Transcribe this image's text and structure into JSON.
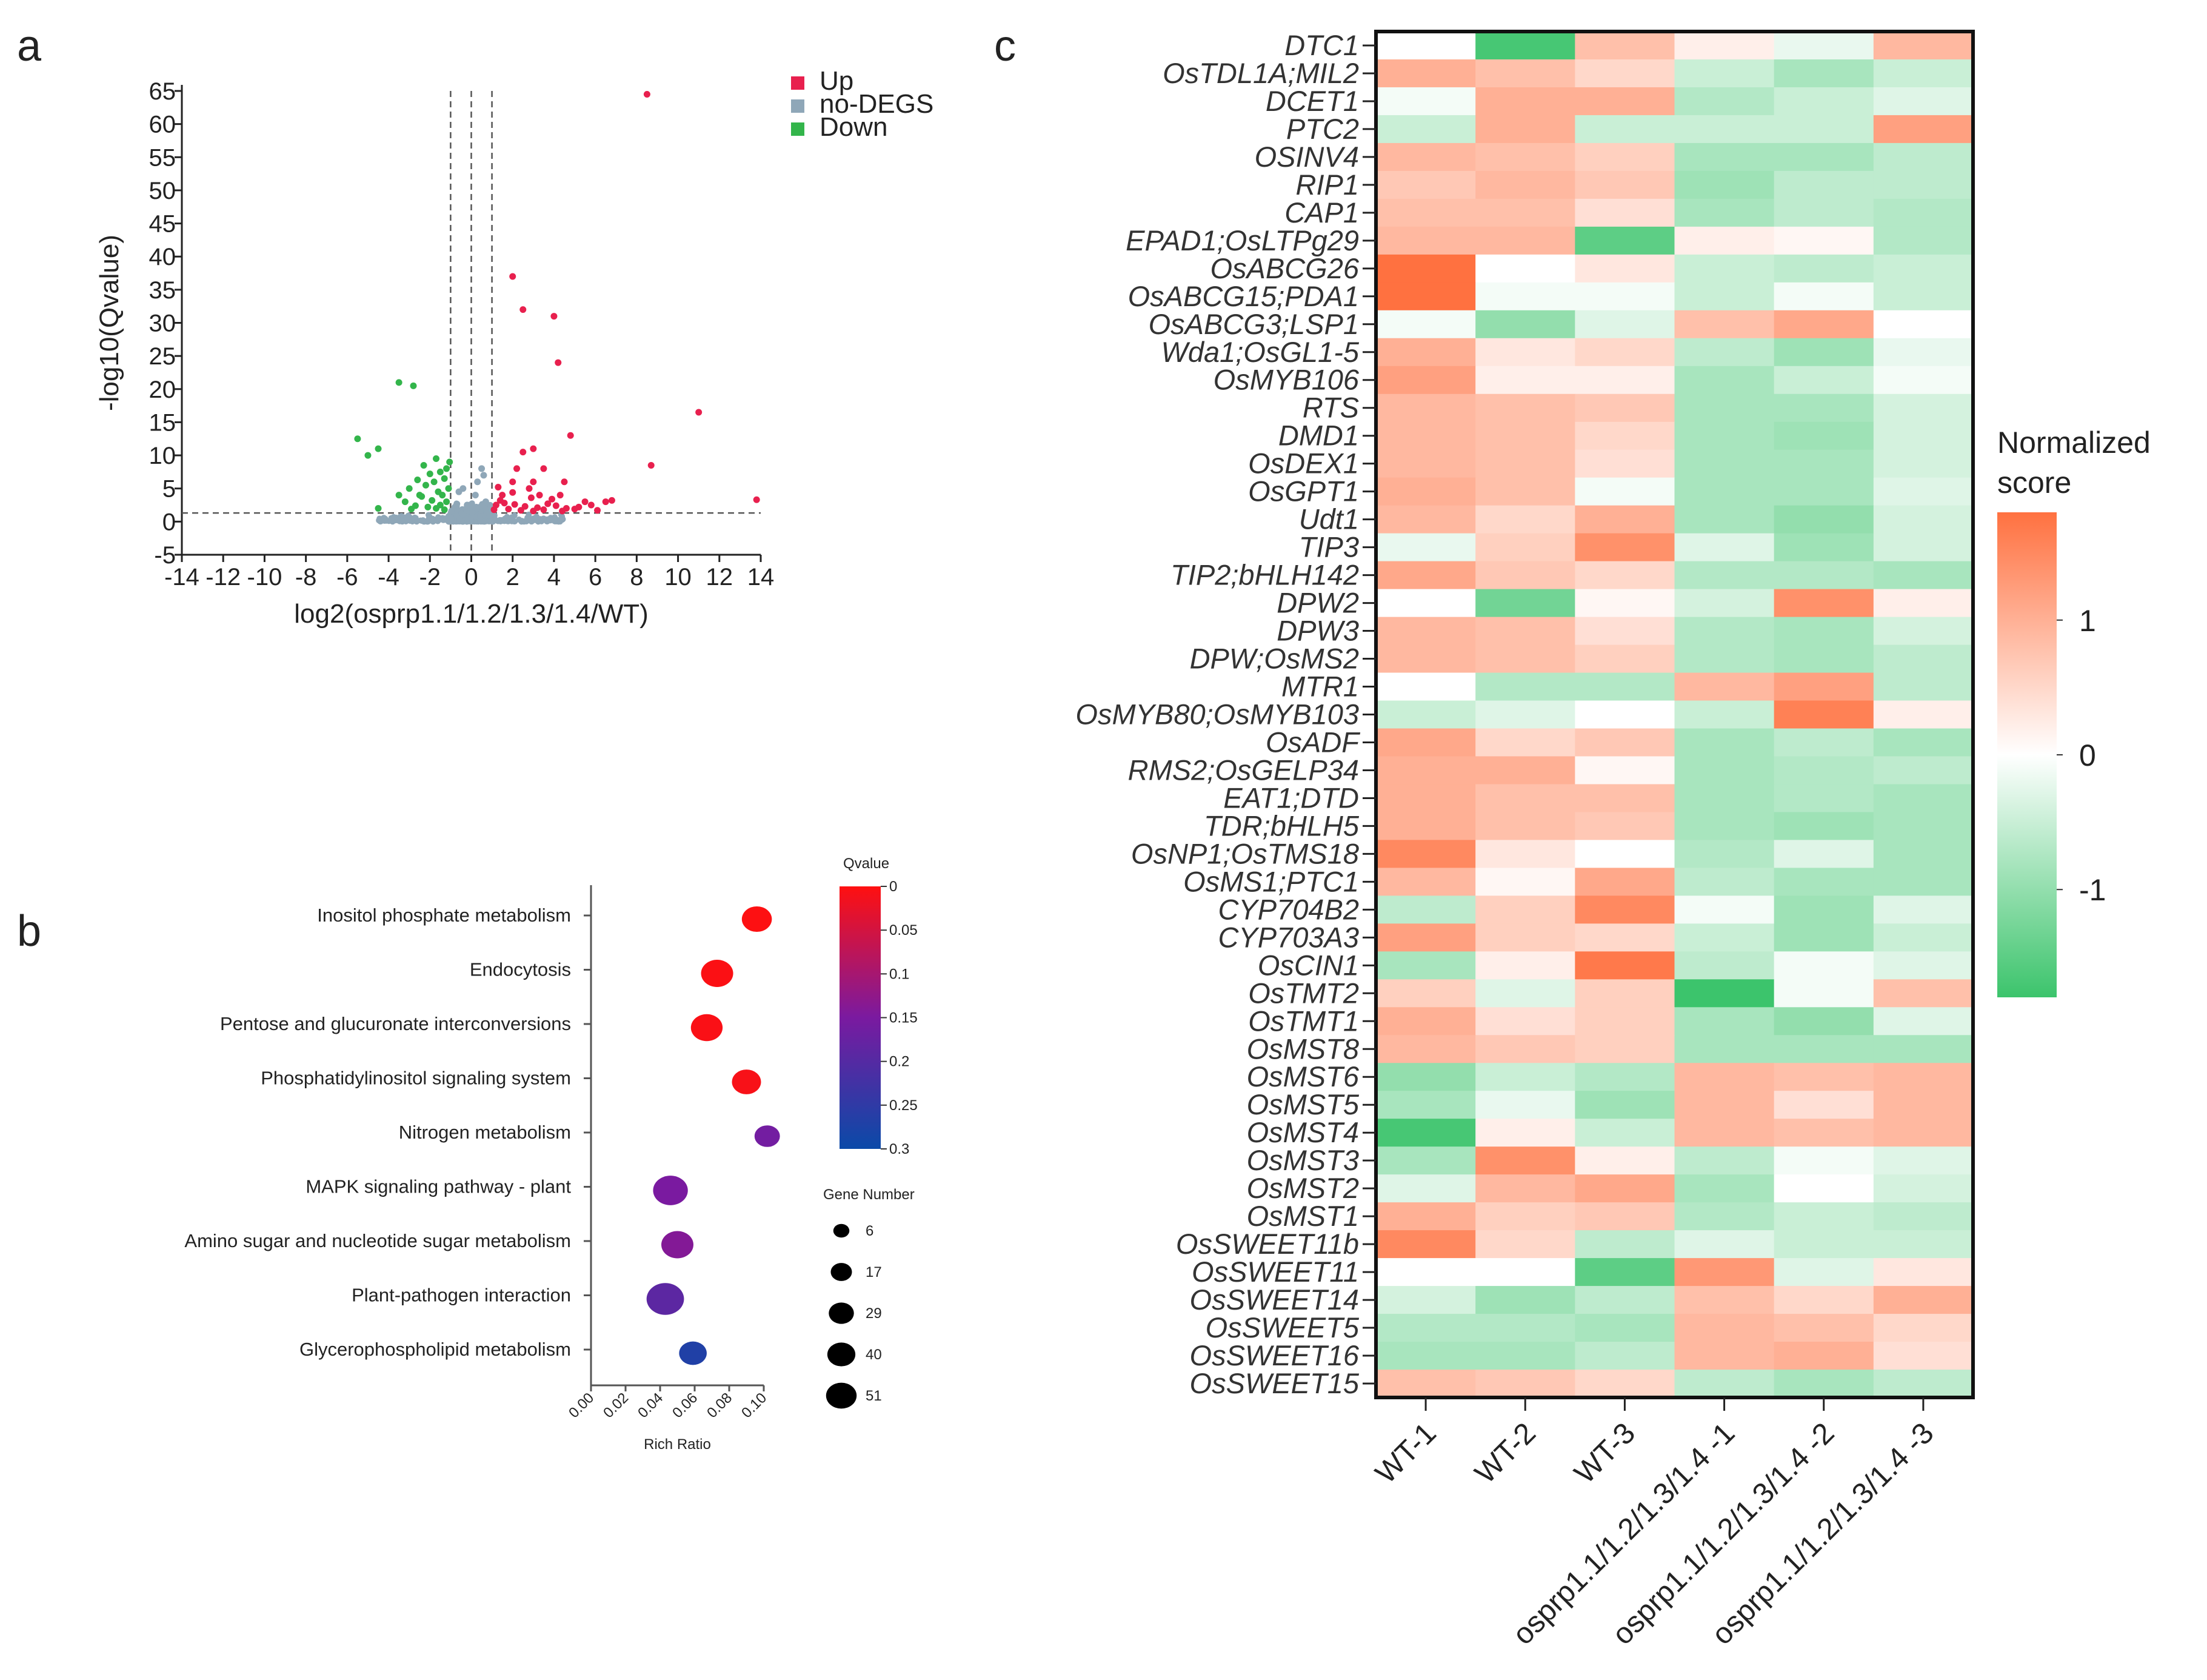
{
  "panels": {
    "a": "a",
    "b": "b",
    "c": "c"
  },
  "colors": {
    "up": "#e8204e",
    "nodeg": "#8fa7b8",
    "down": "#33b54b",
    "heat_low": "#3cc46c",
    "heat_mid": "#ffffff",
    "heat_high": "#ff7140"
  },
  "chart_data": [
    {
      "type": "scatter",
      "panel": "a",
      "xlabel": "log2(osprp1.1/1.2/1.3/1.4/WT)",
      "ylabel": "-log10(Qvalue)",
      "xlim": [
        -14,
        14
      ],
      "ylim": [
        -5,
        65
      ],
      "xticks": [
        -14,
        -12,
        -10,
        -8,
        -6,
        -4,
        -2,
        0,
        2,
        4,
        6,
        8,
        10,
        12,
        14
      ],
      "yticks": [
        -5,
        0,
        5,
        10,
        15,
        20,
        25,
        30,
        35,
        40,
        45,
        50,
        55,
        60,
        65
      ],
      "threshold_lines": {
        "x": [
          -1,
          0,
          1
        ],
        "y": [
          1.3
        ]
      },
      "legend": [
        "Up",
        "no-DEGS",
        "Down"
      ],
      "series": [
        {
          "name": "Up",
          "points": [
            [
              8.5,
              64.5
            ],
            [
              2,
              37
            ],
            [
              2.5,
              32
            ],
            [
              4,
              31
            ],
            [
              4.2,
              24
            ],
            [
              11,
              16.5
            ],
            [
              4.8,
              13
            ],
            [
              8.7,
              8.5
            ],
            [
              2.5,
              10.5
            ],
            [
              3,
              11
            ],
            [
              2.2,
              8
            ],
            [
              3.5,
              8
            ],
            [
              2,
              6
            ],
            [
              3,
              6
            ],
            [
              4.5,
              6
            ],
            [
              2.8,
              5
            ],
            [
              1.5,
              4
            ],
            [
              4.3,
              4
            ],
            [
              5.5,
              3
            ],
            [
              6.5,
              3
            ],
            [
              6.8,
              3.2
            ],
            [
              13.8,
              3.3
            ],
            [
              1.2,
              2.5
            ],
            [
              1.6,
              2.8
            ],
            [
              2.1,
              2.6
            ],
            [
              2.6,
              2.3
            ],
            [
              3.2,
              2.1
            ],
            [
              3.7,
              2.7
            ],
            [
              4.1,
              2.4
            ],
            [
              4.6,
              2.0
            ],
            [
              5.2,
              2.2
            ],
            [
              5.8,
              2.5
            ],
            [
              1.1,
              1.8
            ],
            [
              1.8,
              1.9
            ],
            [
              2.4,
              1.7
            ],
            [
              3.0,
              1.6
            ],
            [
              3.5,
              1.8
            ],
            [
              4.4,
              1.6
            ],
            [
              5.0,
              1.9
            ],
            [
              6.1,
              1.7
            ],
            [
              1.4,
              3.2
            ],
            [
              2.9,
              3.6
            ],
            [
              3.9,
              3.4
            ],
            [
              1.3,
              5.2
            ],
            [
              2.0,
              4.4
            ],
            [
              3.3,
              4.0
            ]
          ]
        },
        {
          "name": "Down",
          "points": [
            [
              -3.5,
              21
            ],
            [
              -2.8,
              20.5
            ],
            [
              -5.5,
              12.5
            ],
            [
              -4.5,
              11
            ],
            [
              -5,
              10
            ],
            [
              -3,
              5
            ],
            [
              -3.5,
              4
            ],
            [
              -2.5,
              4
            ],
            [
              -4.5,
              2
            ],
            [
              -1.2,
              8
            ],
            [
              -1.5,
              7.5
            ],
            [
              -2.0,
              7.2
            ],
            [
              -1.3,
              6.5
            ],
            [
              -1.8,
              6
            ],
            [
              -2.2,
              5.5
            ],
            [
              -1.1,
              5
            ],
            [
              -1.6,
              4.5
            ],
            [
              -2.4,
              3.8
            ],
            [
              -1.9,
              3.2
            ],
            [
              -1.2,
              3
            ],
            [
              -1.5,
              2.5
            ],
            [
              -2.1,
              2.2
            ],
            [
              -1.7,
              2
            ],
            [
              -1.3,
              1.8
            ],
            [
              -2.7,
              2.4
            ],
            [
              -2.9,
              1.9
            ],
            [
              -1.4,
              4
            ],
            [
              -2.6,
              6.3
            ],
            [
              -1.05,
              9
            ],
            [
              -1.7,
              9.5
            ],
            [
              -2.3,
              8.5
            ],
            [
              -3.2,
              3
            ]
          ]
        },
        {
          "name": "no-DEGS",
          "points": [
            [
              0.5,
              8
            ],
            [
              0.6,
              7
            ],
            [
              0.3,
              6
            ],
            [
              -0.4,
              5
            ],
            [
              0.2,
              4
            ],
            [
              -0.6,
              4.5
            ],
            [
              0.7,
              3
            ],
            [
              -0.2,
              2.5
            ]
          ]
        }
      ]
    },
    {
      "type": "scatter",
      "panel": "b",
      "xlabel": "Rich Ratio",
      "xlim": [
        0.0,
        0.1
      ],
      "xticks": [
        "0.00",
        "0.02",
        "0.04",
        "0.06",
        "0.08",
        "0.10"
      ],
      "categories": [
        "Inositol phosphate metabolism",
        "Endocytosis",
        "Pentose and glucuronate interconversions",
        "Phosphatidylinositol signaling system",
        "Nitrogen metabolism",
        "MAPK signaling pathway - plant",
        "Amino sugar and nucleotide sugar metabolism",
        "Plant-pathogen interaction",
        "Glycerophospholipid metabolism"
      ],
      "rich_ratio": [
        0.096,
        0.073,
        0.067,
        0.09,
        0.102,
        0.046,
        0.05,
        0.043,
        0.059
      ],
      "gene_number": [
        20,
        25,
        24,
        18,
        11,
        32,
        25,
        40,
        15
      ],
      "qvalue": [
        0.002,
        0.004,
        0.006,
        0.008,
        0.16,
        0.15,
        0.14,
        0.19,
        0.27
      ],
      "color_legend_title": "Qvalue",
      "color_ticks": [
        "0",
        "0.05",
        "0.1",
        "0.15",
        "0.2",
        "0.25",
        "0.3"
      ],
      "size_legend_title": "Gene Number",
      "size_ticks": [
        6,
        17,
        29,
        40,
        51
      ]
    },
    {
      "type": "heatmap",
      "panel": "c",
      "columns": [
        "WT-1",
        "WT-2",
        "WT-3",
        "osprp1.1/1.2/1.3/1.4 -1",
        "osprp1.1/1.2/1.3/1.4 -2",
        "osprp1.1/1.2/1.3/1.4 -3"
      ],
      "rows": [
        "DTC1",
        "OsTDL1A;MIL2",
        "DCET1",
        "PTC2",
        "OSINV4",
        "RIP1",
        "CAP1",
        "EPAD1;OsLTPg29",
        "OsABCG26",
        "OsABCG15;PDA1",
        "OsABCG3;LSP1",
        "Wda1;OsGL1-5",
        "OsMYB106",
        "RTS",
        "DMD1",
        "OsDEX1",
        "OsGPT1",
        "Udt1",
        "TIP3",
        "TIP2;bHLH142",
        "DPW2",
        "DPW3",
        "DPW;OsMS2",
        "MTR1",
        "OsMYB80;OsMYB103",
        "OsADF",
        "RMS2;OsGELP34",
        "EAT1;DTD",
        "TDR;bHLH5",
        "OsNP1;OsTMS18",
        "OsMS1;PTC1",
        "CYP704B2",
        "CYP703A3",
        "OsCIN1",
        "OsTMT2",
        "OsTMT1",
        "OsMST8",
        "OsMST6",
        "OsMST5",
        "OsMST4",
        "OsMST3",
        "OsMST2",
        "OsMST1",
        "OsSWEET11b",
        "OsSWEET11",
        "OsSWEET14",
        "OsSWEET5",
        "OsSWEET16",
        "OsSWEET15"
      ],
      "values": [
        [
          0.0,
          -1.7,
          0.8,
          0.2,
          -0.2,
          0.9
        ],
        [
          1.0,
          0.8,
          0.5,
          -0.5,
          -0.8,
          -0.5
        ],
        [
          -0.1,
          1.0,
          1.0,
          -0.7,
          -0.5,
          -0.3
        ],
        [
          -0.5,
          1.0,
          -0.5,
          -0.5,
          -0.5,
          1.2
        ],
        [
          0.9,
          0.8,
          0.6,
          -0.8,
          -0.8,
          -0.6
        ],
        [
          0.7,
          0.9,
          0.7,
          -0.9,
          -0.6,
          -0.6
        ],
        [
          0.8,
          0.8,
          0.4,
          -0.8,
          -0.6,
          -0.7
        ],
        [
          0.9,
          0.9,
          -1.5,
          0.2,
          0.1,
          -0.7
        ],
        [
          1.8,
          0.0,
          0.3,
          -0.5,
          -0.6,
          -0.5
        ],
        [
          1.8,
          -0.1,
          -0.1,
          -0.5,
          -0.1,
          -0.5
        ],
        [
          -0.1,
          -1.0,
          -0.3,
          0.8,
          1.1,
          0.0
        ],
        [
          1.0,
          0.3,
          0.5,
          -0.6,
          -0.9,
          -0.2
        ],
        [
          1.2,
          0.2,
          0.2,
          -0.8,
          -0.5,
          -0.1
        ],
        [
          0.9,
          0.8,
          0.7,
          -0.8,
          -0.8,
          -0.4
        ],
        [
          0.9,
          0.8,
          0.5,
          -0.8,
          -0.9,
          -0.4
        ],
        [
          0.9,
          0.8,
          0.4,
          -0.8,
          -0.8,
          -0.4
        ],
        [
          1.0,
          0.8,
          -0.1,
          -0.8,
          -0.8,
          -0.3
        ],
        [
          0.9,
          0.5,
          1.0,
          -0.8,
          -1.0,
          -0.4
        ],
        [
          -0.2,
          0.6,
          1.4,
          -0.3,
          -0.9,
          -0.4
        ],
        [
          1.1,
          0.7,
          0.5,
          -0.7,
          -0.7,
          -0.8
        ],
        [
          0.0,
          -1.3,
          0.1,
          -0.4,
          1.4,
          0.2
        ],
        [
          0.9,
          0.8,
          0.4,
          -0.7,
          -0.8,
          -0.4
        ],
        [
          0.9,
          0.8,
          0.6,
          -0.7,
          -0.8,
          -0.6
        ],
        [
          0.0,
          -0.7,
          -0.7,
          0.9,
          1.2,
          -0.6
        ],
        [
          -0.5,
          -0.3,
          0.0,
          -0.5,
          1.6,
          0.2
        ],
        [
          1.1,
          0.5,
          0.7,
          -0.8,
          -0.6,
          -0.8
        ],
        [
          1.0,
          1.0,
          0.1,
          -0.8,
          -0.7,
          -0.6
        ],
        [
          1.0,
          0.8,
          0.8,
          -0.8,
          -0.7,
          -0.8
        ],
        [
          1.0,
          0.8,
          0.7,
          -0.8,
          -0.9,
          -0.8
        ],
        [
          1.5,
          0.3,
          0.0,
          -0.7,
          -0.3,
          -0.8
        ],
        [
          0.9,
          0.1,
          1.1,
          -0.6,
          -0.8,
          -0.8
        ],
        [
          -0.6,
          0.6,
          1.5,
          -0.1,
          -0.9,
          -0.3
        ],
        [
          1.2,
          0.6,
          0.5,
          -0.5,
          -0.9,
          -0.5
        ],
        [
          -0.8,
          0.2,
          1.7,
          -0.6,
          -0.1,
          -0.3
        ],
        [
          0.6,
          -0.3,
          0.6,
          -1.8,
          -0.1,
          0.8
        ],
        [
          1.0,
          0.4,
          0.6,
          -0.8,
          -1.0,
          -0.3
        ],
        [
          0.9,
          0.7,
          0.6,
          -0.8,
          -0.8,
          -0.8
        ],
        [
          -1.0,
          -0.5,
          -0.7,
          0.9,
          0.8,
          0.9
        ],
        [
          -0.8,
          -0.2,
          -0.9,
          0.9,
          0.4,
          0.9
        ],
        [
          -1.7,
          0.2,
          -0.5,
          0.9,
          0.8,
          0.9
        ],
        [
          -0.8,
          1.4,
          0.2,
          -0.6,
          -0.1,
          -0.3
        ],
        [
          -0.3,
          0.9,
          1.1,
          -0.8,
          0.0,
          -0.4
        ],
        [
          1.0,
          0.6,
          0.7,
          -0.7,
          -0.5,
          -0.6
        ],
        [
          1.5,
          0.5,
          -0.6,
          -0.3,
          -0.5,
          -0.5
        ],
        [
          0.0,
          0.0,
          -1.5,
          1.3,
          -0.3,
          0.3
        ],
        [
          -0.4,
          -0.9,
          -0.6,
          0.8,
          0.5,
          1.0
        ],
        [
          -0.7,
          -0.7,
          -0.8,
          0.9,
          0.8,
          0.5
        ],
        [
          -0.8,
          -0.8,
          -0.6,
          0.9,
          1.0,
          0.4
        ],
        [
          0.8,
          0.7,
          0.5,
          -0.6,
          -0.8,
          -0.6
        ]
      ],
      "colorbar_title": [
        "Normalized",
        "score"
      ],
      "colorbar_ticks": [
        "1",
        "0",
        "-1"
      ],
      "color_range": [
        -1.8,
        1.8
      ]
    }
  ]
}
